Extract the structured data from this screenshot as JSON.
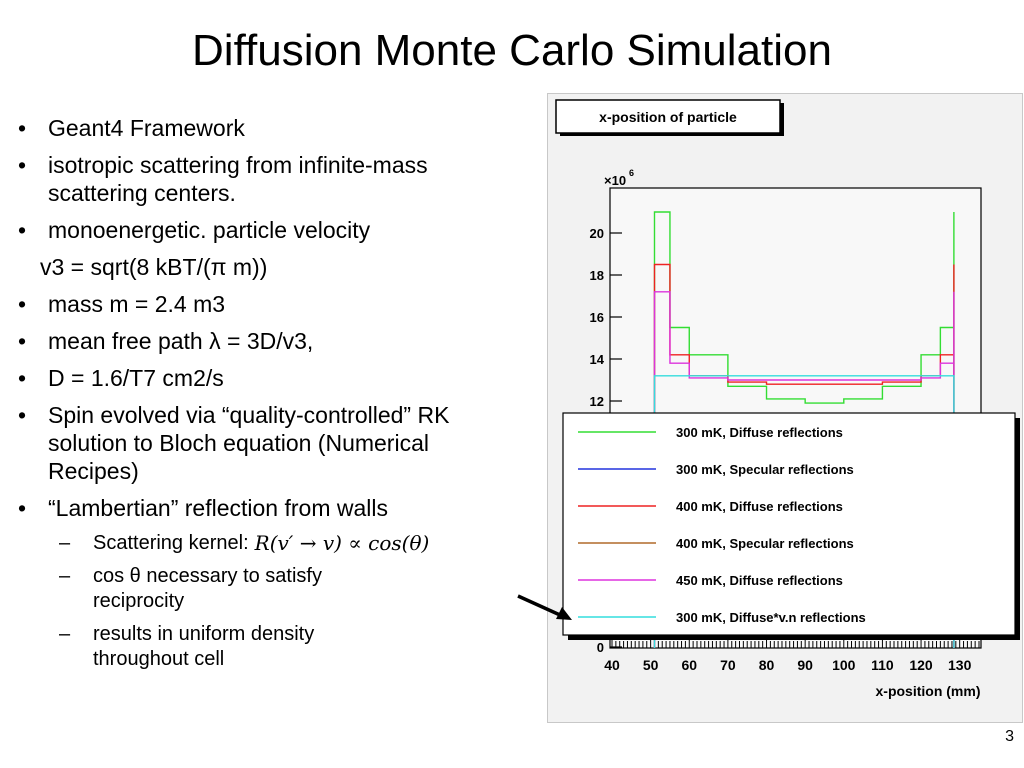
{
  "slide": {
    "title": "Diffusion Monte Carlo Simulation",
    "page_number": "3",
    "bullets": {
      "b1": "Geant4 Framework",
      "b2": "isotropic scattering from infinite-mass scattering centers.",
      "b3": "monoenergetic.  particle velocity",
      "b3_formula": "v3 = sqrt(8 kBT/(π m))",
      "b4": "mass m = 2.4 m3",
      "b5": "mean free path λ = 3D/v3,",
      "b6": "D = 1.6/T7 cm2/s",
      "b7": "Spin evolved via “quality-controlled” RK solution to Bloch equation (Numerical Recipes)",
      "b8": "“Lambertian” reflection from walls",
      "s1": "Scattering kernel:",
      "s1_formula": "R(v′ → v) ∝ cos(θ)",
      "s2": "cos θ necessary to satisfy reciprocity",
      "s3": "results in uniform density throughout cell"
    }
  },
  "plot": {
    "title_box": "x-position of particle",
    "multiplier": "×10",
    "multiplier_exp": "6",
    "x_axis_label": "x-position (mm)",
    "x_ticks": [
      "40",
      "50",
      "60",
      "70",
      "80",
      "90",
      "100",
      "110",
      "120",
      "130"
    ],
    "y_ticks": [
      "20",
      "18",
      "16",
      "14",
      "12",
      "0"
    ],
    "legend": [
      {
        "label": "300 mK, Diffuse reflections",
        "color": "#33dd33"
      },
      {
        "label": "300 mK, Specular reflections",
        "color": "#2233dd"
      },
      {
        "label": "400 mK, Diffuse reflections",
        "color": "#ee2222"
      },
      {
        "label": "400 mK, Specular reflections",
        "color": "#b06a2a"
      },
      {
        "label": "450 mK, Diffuse reflections",
        "color": "#dd33dd"
      },
      {
        "label": "300 mK, Diffuse*v.n reflections",
        "color": "#33dddd"
      }
    ]
  },
  "chart_data": {
    "type": "line",
    "title": "x-position of particle",
    "xlabel": "x-position (mm)",
    "ylabel": "",
    "y_multiplier": "×10^6",
    "xlim": [
      40,
      135
    ],
    "ylim_visible": [
      11.5,
      21.5
    ],
    "series": [
      {
        "name": "300 mK, Diffuse reflections",
        "x": [
          51,
          55,
          60,
          70,
          80,
          90,
          100,
          110,
          120,
          125,
          128.5
        ],
        "y": [
          21.0,
          15.5,
          14.2,
          12.7,
          12.1,
          11.9,
          12.1,
          12.7,
          14.2,
          15.5,
          21.0
        ]
      },
      {
        "name": "400 mK, Diffuse reflections",
        "x": [
          51,
          55,
          60,
          70,
          80,
          90,
          100,
          110,
          120,
          125,
          128.5
        ],
        "y": [
          18.5,
          14.2,
          13.2,
          12.9,
          12.8,
          12.8,
          12.8,
          12.9,
          13.2,
          14.2,
          18.5
        ]
      },
      {
        "name": "450 mK, Diffuse reflections",
        "x": [
          51,
          55,
          60,
          70,
          80,
          90,
          100,
          110,
          120,
          125,
          128.5
        ],
        "y": [
          17.2,
          13.8,
          13.1,
          13.0,
          13.0,
          13.0,
          13.0,
          13.0,
          13.1,
          13.8,
          17.2
        ]
      },
      {
        "name": "300 mK, Diffuse*v.n reflections",
        "x": [
          51,
          60,
          70,
          80,
          90,
          100,
          110,
          120,
          128.5
        ],
        "y": [
          13.2,
          13.2,
          13.2,
          13.2,
          13.2,
          13.2,
          13.2,
          13.2,
          13.2
        ]
      }
    ]
  }
}
